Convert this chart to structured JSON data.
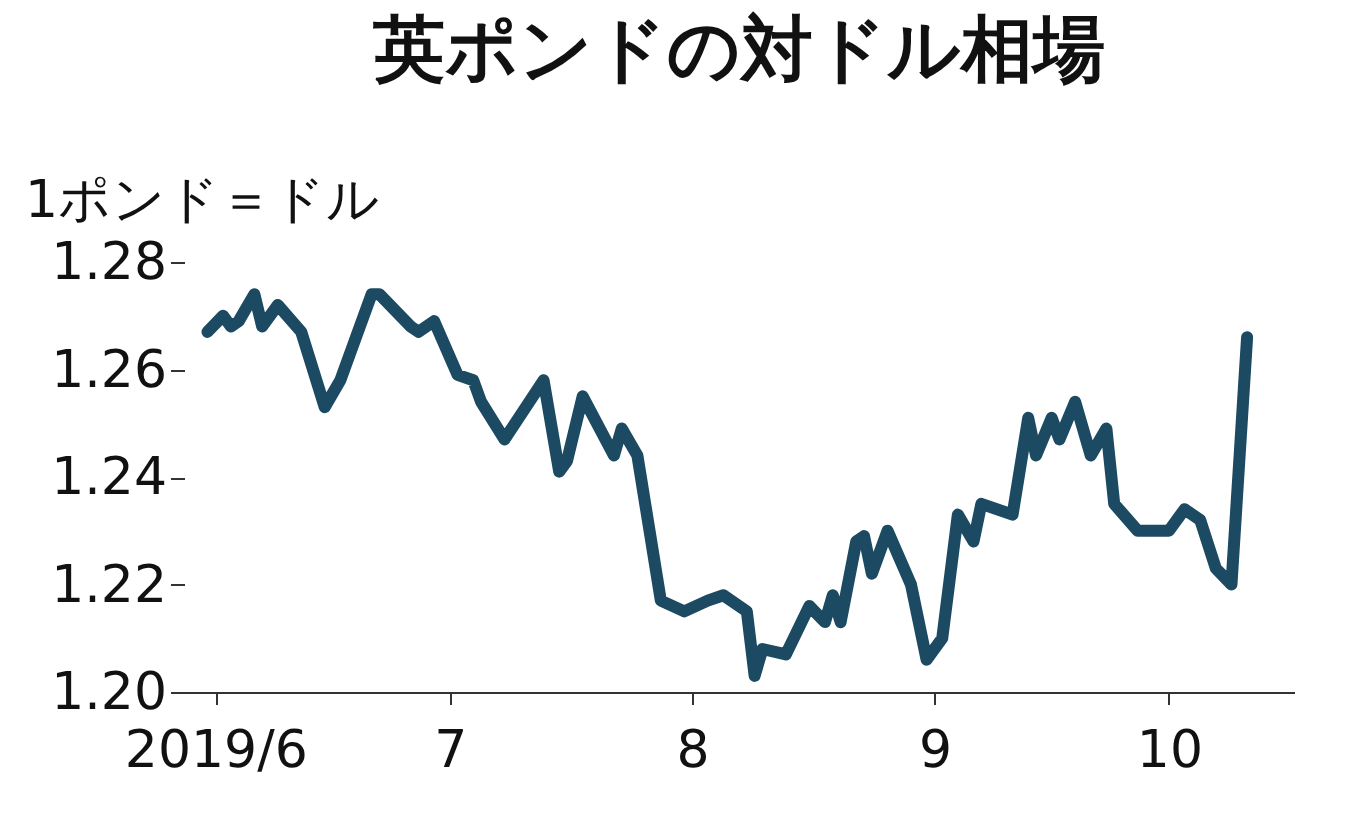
{
  "chart_data": {
    "type": "line",
    "title": "英ポンドの対ドル相場",
    "ylabel": "1ポンド＝ドル",
    "x": [
      "2019-05-31",
      "2019-06-02",
      "2019-06-03",
      "2019-06-04",
      "2019-06-06",
      "2019-06-07",
      "2019-06-09",
      "2019-06-12",
      "2019-06-15",
      "2019-06-17",
      "2019-06-21",
      "2019-06-22",
      "2019-06-26",
      "2019-06-27",
      "2019-06-29",
      "2019-07-02",
      "2019-07-04",
      "2019-07-05",
      "2019-07-08",
      "2019-07-13",
      "2019-07-15",
      "2019-07-16",
      "2019-07-18",
      "2019-07-22",
      "2019-07-23",
      "2019-07-25",
      "2019-07-28",
      "2019-07-31",
      "2019-08-03",
      "2019-08-05",
      "2019-08-08",
      "2019-08-09",
      "2019-08-10",
      "2019-08-13",
      "2019-08-16",
      "2019-08-18",
      "2019-08-19",
      "2019-08-20",
      "2019-08-22",
      "2019-08-23",
      "2019-08-24",
      "2019-08-26",
      "2019-08-29",
      "2019-08-31",
      "2019-09-02",
      "2019-09-04",
      "2019-09-06",
      "2019-09-07",
      "2019-09-11",
      "2019-09-13",
      "2019-09-14",
      "2019-09-16",
      "2019-09-17",
      "2019-09-19",
      "2019-09-21",
      "2019-09-23",
      "2019-09-24",
      "2019-09-27",
      "2019-10-01",
      "2019-10-03",
      "2019-10-05",
      "2019-10-07",
      "2019-10-09",
      "2019-10-11"
    ],
    "series": [
      {
        "color": "#1b4a62",
        "values": [
          1.267,
          1.27,
          1.268,
          1.269,
          1.274,
          1.268,
          1.272,
          1.267,
          1.253,
          1.258,
          1.274,
          1.274,
          1.268,
          1.267,
          1.269,
          1.259,
          1.258,
          1.254,
          1.247,
          1.258,
          1.241,
          1.243,
          1.255,
          1.244,
          1.249,
          1.244,
          1.217,
          1.215,
          1.217,
          1.218,
          1.215,
          1.203,
          1.208,
          1.207,
          1.216,
          1.213,
          1.218,
          1.213,
          1.228,
          1.229,
          1.222,
          1.23,
          1.22,
          1.206,
          1.21,
          1.233,
          1.228,
          1.235,
          1.233,
          1.251,
          1.244,
          1.251,
          1.247,
          1.254,
          1.244,
          1.249,
          1.235,
          1.23,
          1.23,
          1.234,
          1.232,
          1.223,
          1.22,
          1.266
        ]
      }
    ],
    "xlim": [
      "2019-05-28",
      "2019-10-17"
    ],
    "xticks": [
      {
        "value": "2019-06-01",
        "label": "2019/6"
      },
      {
        "value": "2019-07-01",
        "label": "7"
      },
      {
        "value": "2019-08-01",
        "label": "8"
      },
      {
        "value": "2019-09-01",
        "label": "9"
      },
      {
        "value": "2019-10-01",
        "label": "10"
      }
    ],
    "ylim": [
      1.2,
      1.28
    ],
    "yticks": [
      {
        "value": 1.2,
        "label": "1.20"
      },
      {
        "value": 1.22,
        "label": "1.22"
      },
      {
        "value": 1.24,
        "label": "1.24"
      },
      {
        "value": 1.26,
        "label": "1.26"
      },
      {
        "value": 1.28,
        "label": "1.28"
      }
    ],
    "grid": false,
    "marker": "none",
    "line_style": "solid"
  }
}
